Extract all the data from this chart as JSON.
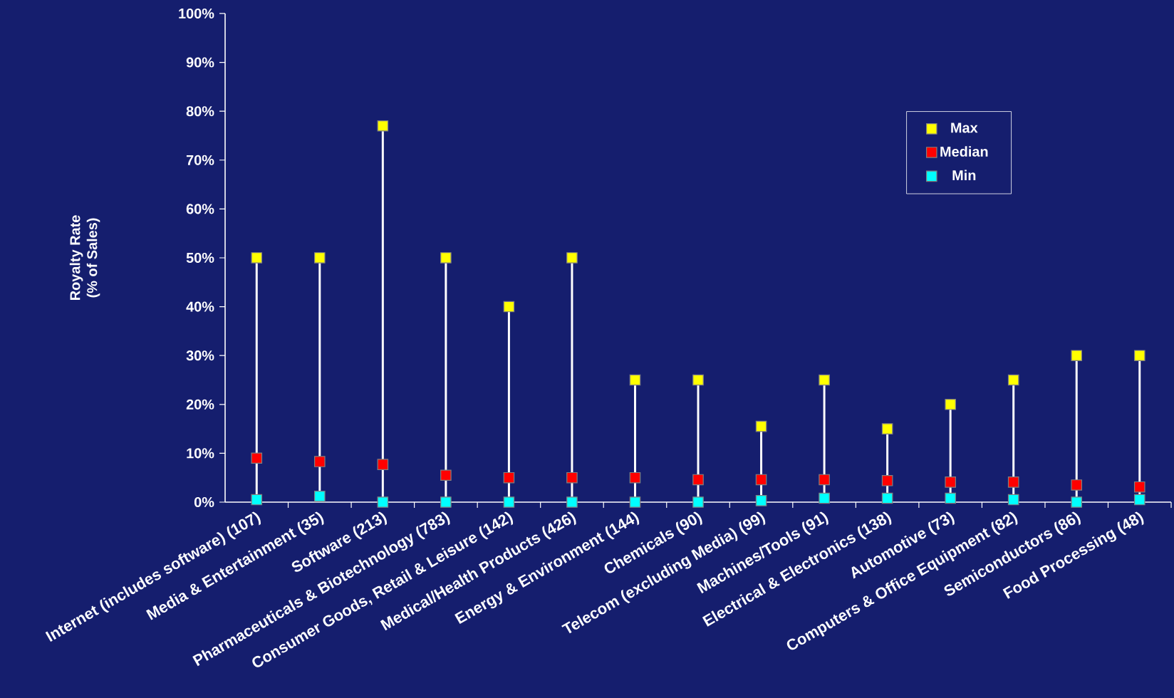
{
  "chart_data": {
    "type": "scatter",
    "ylabel": "Royalty Rate\n(% of Sales)",
    "categories": [
      "Internet (includes software) (107)",
      "Media & Entertainment (35)",
      "Software (213)",
      "Pharmaceuticals & Biotechnology (783)",
      "Consumer Goods, Retail & Leisure (142)",
      "Medical/Health Products (426)",
      "Energy & Environment (144)",
      "Chemicals (90)",
      "Telecom (excluding Media) (99)",
      "Machines/Tools (91)",
      "Electrical  & Electronics (138)",
      "Automotive (73)",
      "Computers & Office Equipment (82)",
      "Semiconductors (86)",
      "Food Processing (48)"
    ],
    "series": [
      {
        "name": "Max",
        "color": "#ffff00",
        "values": [
          50,
          50,
          77,
          50,
          40,
          50,
          25,
          25,
          15.5,
          25,
          15,
          20,
          25,
          30,
          30
        ]
      },
      {
        "name": "Median",
        "color": "#ff0000",
        "values": [
          9.0,
          8.3,
          7.7,
          5.5,
          5.0,
          5.0,
          5.0,
          4.6,
          4.6,
          4.6,
          4.4,
          4.1,
          4.1,
          3.5,
          3.1
        ]
      },
      {
        "name": "Min",
        "color": "#00ffff",
        "values": [
          0.5,
          1.2,
          0,
          0,
          0,
          0,
          0,
          0,
          0.3,
          0.8,
          0.8,
          0.8,
          0.5,
          0,
          0.5
        ]
      }
    ],
    "ylim": [
      0,
      100
    ],
    "yticks": [
      {
        "value": 0,
        "label": "0%"
      },
      {
        "value": 10,
        "label": "10%"
      },
      {
        "value": 20,
        "label": "20%"
      },
      {
        "value": 30,
        "label": "30%"
      },
      {
        "value": 40,
        "label": "40%"
      },
      {
        "value": 50,
        "label": "50%"
      },
      {
        "value": 60,
        "label": "60%"
      },
      {
        "value": 70,
        "label": "70%"
      },
      {
        "value": 80,
        "label": "80%"
      },
      {
        "value": 90,
        "label": "90%"
      },
      {
        "value": 100,
        "label": "100%"
      }
    ],
    "legend": "top right",
    "marker": "square"
  }
}
